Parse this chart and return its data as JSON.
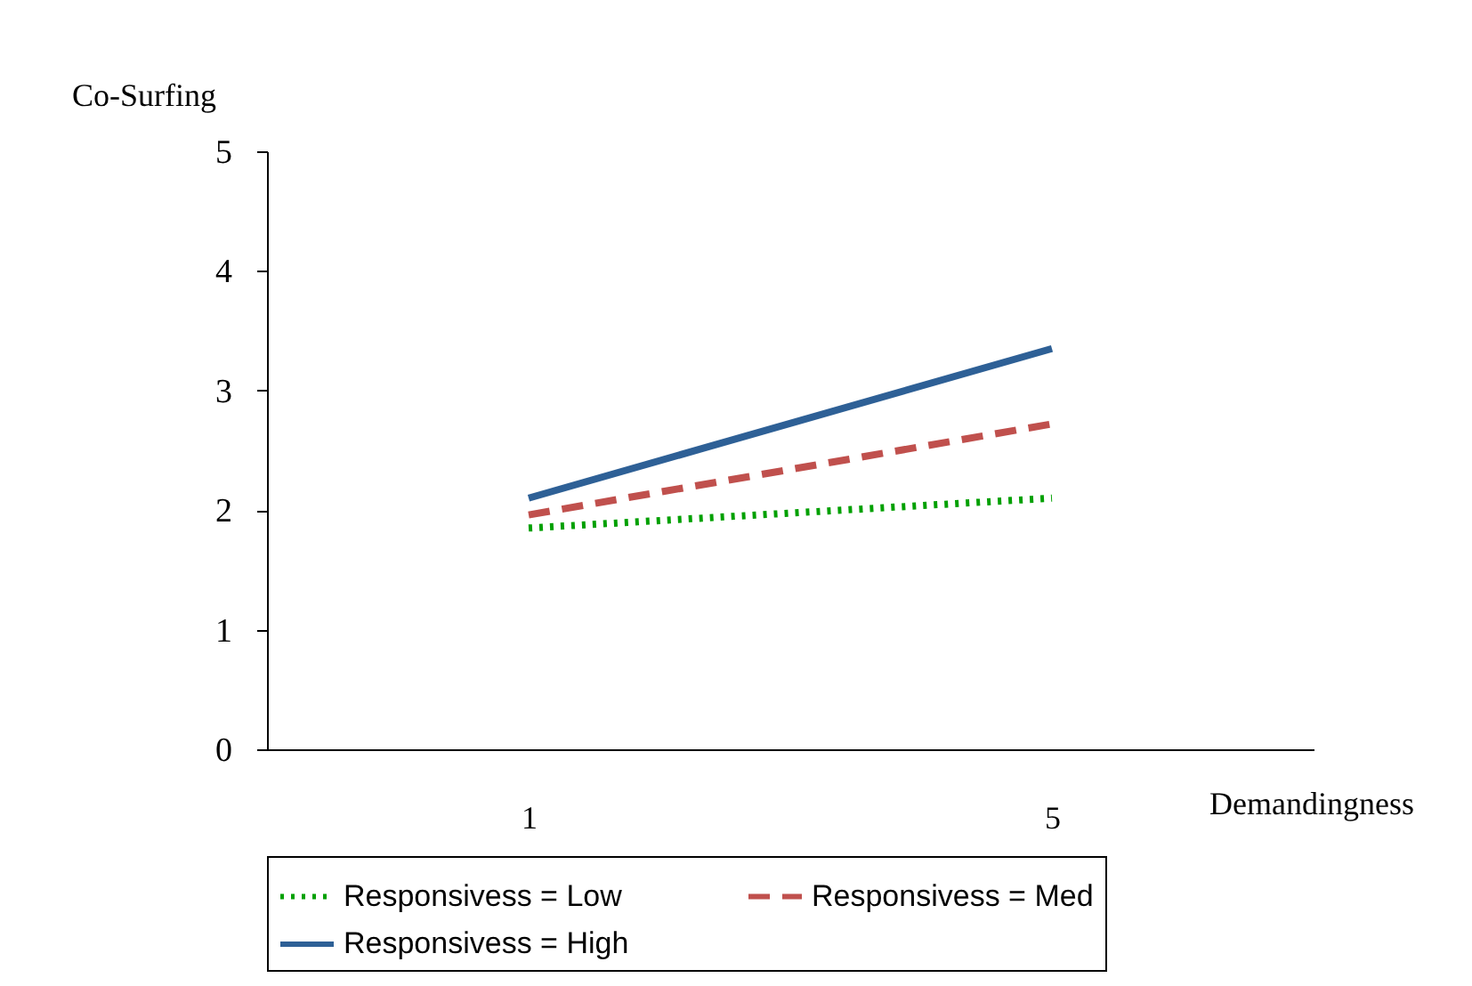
{
  "chart_data": {
    "type": "line",
    "xlabel": "Demandingness",
    "ylabel": "Co-Surfing",
    "categories": [
      "1",
      "5"
    ],
    "series": [
      {
        "name": "Responsivess = Low",
        "color": "#00a000",
        "line_style": "dotted",
        "values": [
          1.85,
          2.1
        ]
      },
      {
        "name": "Responsivess = Med",
        "color": "#c0504d",
        "line_style": "dashed",
        "values": [
          1.96,
          2.72
        ]
      },
      {
        "name": "Responsivess = High",
        "color": "#2e6096",
        "line_style": "solid",
        "values": [
          2.1,
          3.35
        ]
      }
    ],
    "ylim": [
      0,
      5
    ],
    "yticks": [
      0,
      1,
      2,
      3,
      4,
      5
    ],
    "grid": false,
    "legend": "bottom"
  }
}
